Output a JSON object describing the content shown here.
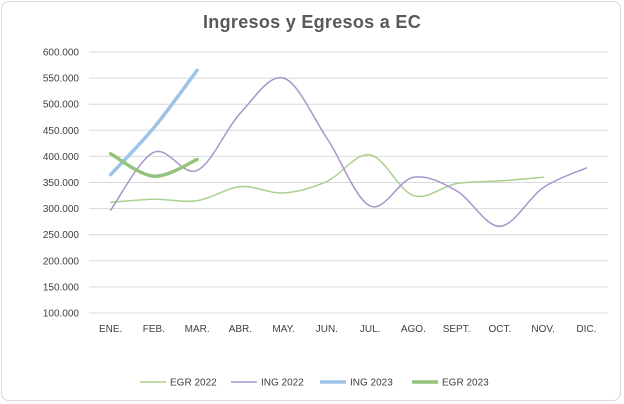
{
  "chart_data": {
    "type": "line",
    "title": "Ingresos y Egresos a EC",
    "xlabel": "",
    "ylabel": "",
    "categories": [
      "ENE.",
      "FEB.",
      "MAR.",
      "ABR.",
      "MAY.",
      "JUN.",
      "JUL.",
      "AGO.",
      "SEPT.",
      "OCT.",
      "NOV.",
      "DIC."
    ],
    "y_ticks": [
      "100.000",
      "150.000",
      "200.000",
      "250.000",
      "300.000",
      "350.000",
      "400.000",
      "450.000",
      "500.000",
      "550.000",
      "600.000"
    ],
    "ylim": [
      100000,
      600000
    ],
    "grid": true,
    "smooth": true,
    "legend_position": "bottom",
    "series": [
      {
        "name": "EGR 2022",
        "color": "#a9d18e",
        "width": 1.5,
        "values": [
          312000,
          318000,
          315000,
          342000,
          330000,
          352000,
          403000,
          325000,
          348000,
          353000,
          360000,
          null
        ]
      },
      {
        "name": "ING 2022",
        "color": "#a995c8",
        "width": 1.5,
        "values": [
          297000,
          408000,
          373000,
          483000,
          550000,
          435000,
          305000,
          360000,
          334000,
          266000,
          340000,
          378000
        ]
      },
      {
        "name": "ING 2023",
        "color": "#9dc3e6",
        "width": 3.5,
        "values": [
          365000,
          455000,
          565000,
          null,
          null,
          null,
          null,
          null,
          null,
          null,
          null,
          null
        ]
      },
      {
        "name": "EGR 2023",
        "color": "#92c47d",
        "width": 3.5,
        "values": [
          405000,
          362000,
          394000,
          null,
          null,
          null,
          null,
          null,
          null,
          null,
          null,
          null
        ]
      }
    ]
  }
}
